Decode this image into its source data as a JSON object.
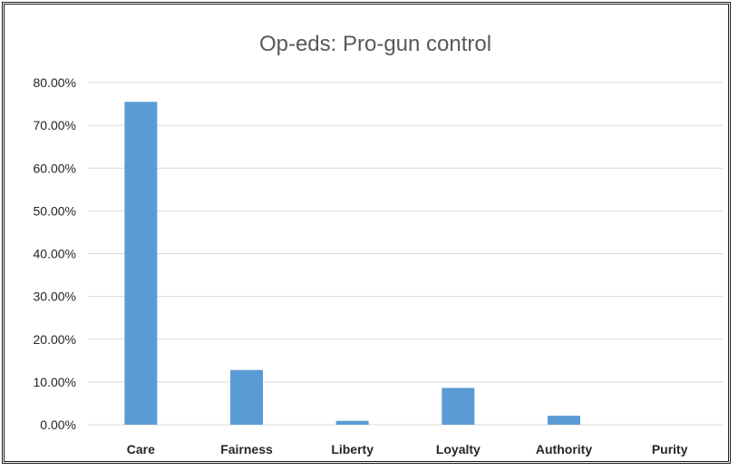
{
  "chart_data": {
    "type": "bar",
    "title": "Op-eds: Pro-gun control",
    "xlabel": "",
    "ylabel": "",
    "categories": [
      "Care",
      "Fairness",
      "Liberty",
      "Loyalty",
      "Authority",
      "Purity"
    ],
    "values": [
      75.5,
      12.8,
      0.9,
      8.6,
      2.1,
      0.0
    ],
    "ylim": [
      0,
      80
    ],
    "yticks": [
      0,
      10,
      20,
      30,
      40,
      50,
      60,
      70,
      80
    ],
    "ytick_labels": [
      "0.00%",
      "10.00%",
      "20.00%",
      "30.00%",
      "40.00%",
      "50.00%",
      "60.00%",
      "70.00%",
      "80.00%"
    ],
    "grid": true,
    "legend": "none",
    "bar_color": "#5b9bd5"
  }
}
